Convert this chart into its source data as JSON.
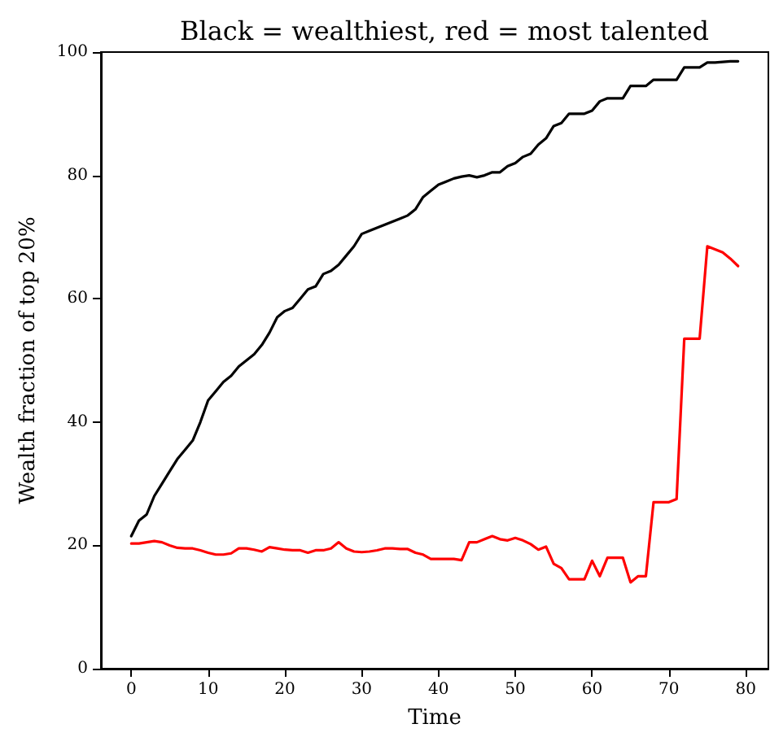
{
  "chart_data": {
    "type": "line",
    "title": "Black = wealthiest, red = most talented",
    "xlabel": "Time",
    "ylabel": "Wealth fraction of top 20%",
    "x": [
      0,
      1,
      2,
      3,
      4,
      5,
      6,
      7,
      8,
      9,
      10,
      11,
      12,
      13,
      14,
      15,
      16,
      17,
      18,
      19,
      20,
      21,
      22,
      23,
      24,
      25,
      26,
      27,
      28,
      29,
      30,
      31,
      32,
      33,
      34,
      35,
      36,
      37,
      38,
      39,
      40,
      41,
      42,
      43,
      44,
      45,
      46,
      47,
      48,
      49,
      50,
      51,
      52,
      53,
      54,
      55,
      56,
      57,
      58,
      59,
      60,
      61,
      62,
      63,
      64,
      65,
      66,
      67,
      68,
      69,
      70,
      71,
      72,
      73,
      74,
      75,
      76,
      77,
      78,
      79
    ],
    "series": [
      {
        "color": "#000000",
        "values": [
          21.5,
          24,
          25,
          28,
          30,
          32,
          34,
          35.5,
          37,
          40,
          43.5,
          45,
          46.5,
          47.5,
          49,
          50,
          51,
          52.5,
          54.5,
          57,
          58,
          58.5,
          60,
          61.5,
          62,
          64,
          64.5,
          65.5,
          67,
          68.5,
          70.5,
          71,
          71.5,
          72,
          72.5,
          73,
          73.5,
          74.5,
          76.5,
          77.5,
          78.5,
          79,
          79.5,
          79.8,
          80,
          79.7,
          80,
          80.5,
          80.5,
          81.5,
          82,
          83,
          83.5,
          85,
          86,
          88,
          88.5,
          90,
          90,
          90,
          90.5,
          92,
          92.5,
          92.5,
          92.5,
          94.5,
          94.5,
          94.5,
          95.5,
          95.5,
          95.5,
          95.5,
          97.5,
          97.5,
          97.5,
          98.3,
          98.3,
          98.4,
          98.5,
          98.5
        ]
      },
      {
        "color": "#ff0000",
        "values": [
          20.3,
          20.3,
          20.5,
          20.7,
          20.5,
          20,
          19.6,
          19.5,
          19.5,
          19.2,
          18.8,
          18.5,
          18.5,
          18.7,
          19.5,
          19.5,
          19.3,
          19,
          19.7,
          19.5,
          19.3,
          19.2,
          19.2,
          18.8,
          19.2,
          19.2,
          19.5,
          20.5,
          19.5,
          19,
          18.9,
          19,
          19.2,
          19.5,
          19.5,
          19.4,
          19.4,
          18.8,
          18.5,
          17.8,
          17.8,
          17.8,
          17.8,
          17.6,
          20.5,
          20.5,
          21,
          21.5,
          21,
          20.8,
          21.2,
          20.8,
          20.2,
          19.3,
          19.8,
          17,
          16.3,
          14.5,
          14.5,
          14.5,
          17.5,
          15,
          18,
          18,
          18,
          14,
          15,
          15,
          27,
          27,
          27,
          27.5,
          53.5,
          53.5,
          53.5,
          68.5,
          68,
          67.5,
          66.5,
          65.3
        ]
      }
    ],
    "xlim": [
      -3.95,
      82.95
    ],
    "xticks": [
      0,
      10,
      20,
      30,
      40,
      50,
      60,
      70,
      80
    ],
    "ylim": [
      0,
      100
    ],
    "yticks": [
      0,
      20,
      40,
      60,
      80,
      100
    ],
    "grid": false,
    "marker": "none",
    "line_style": "solid"
  }
}
